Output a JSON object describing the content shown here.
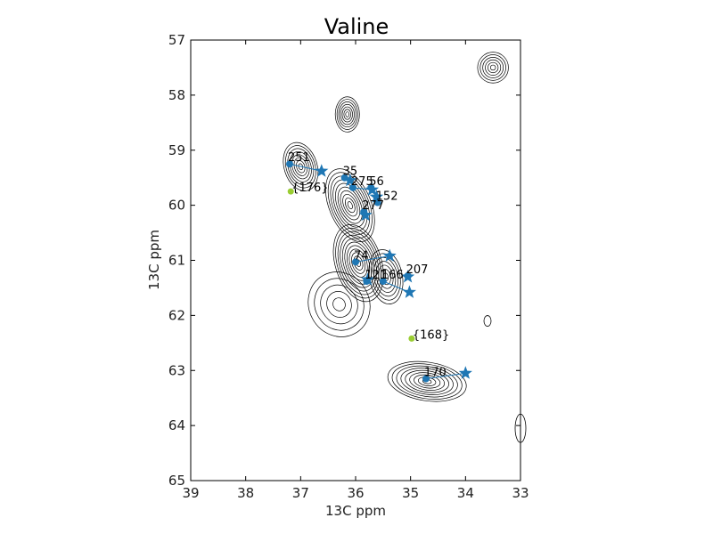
{
  "chart_data": {
    "type": "scatter",
    "title": "Valine",
    "xlabel": "13C ppm",
    "ylabel": "13C ppm",
    "xlim": [
      39,
      33
    ],
    "ylim": [
      65,
      57
    ],
    "x_reversed": true,
    "y_reversed": true,
    "grid": false,
    "xticks": [
      "39",
      "38",
      "37",
      "36",
      "35",
      "34",
      "33"
    ],
    "yticks": [
      "57",
      "58",
      "59",
      "60",
      "61",
      "62",
      "63",
      "64",
      "65"
    ],
    "colors": {
      "marker": "#1f77b4",
      "unassigned": "#9acd32",
      "contour": "#000000"
    },
    "peaks": [
      {
        "label": "251",
        "x": 37.2,
        "y": 59.25,
        "pred_x": 36.62,
        "pred_y": 59.38
      },
      {
        "label": "35",
        "x": 36.2,
        "y": 59.5,
        "pred_x": 36.1,
        "pred_y": 59.55
      },
      {
        "label": "275",
        "x": 36.05,
        "y": 59.68,
        "pred_x": 35.7,
        "pred_y": 59.72
      },
      {
        "label": "56",
        "x": 35.72,
        "y": 59.68,
        "pred_x": 35.62,
        "pred_y": 59.85
      },
      {
        "label": "152",
        "x": 35.6,
        "y": 59.95,
        "pred_x": 35.62,
        "pred_y": 59.85
      },
      {
        "label": "277",
        "x": 35.85,
        "y": 60.12,
        "pred_x": 35.82,
        "pred_y": 60.18
      },
      {
        "label": "74",
        "x": 36.0,
        "y": 61.03,
        "pred_x": 35.38,
        "pred_y": 60.92
      },
      {
        "label": "121",
        "x": 35.8,
        "y": 61.38,
        "pred_x": 35.78,
        "pred_y": 61.35
      },
      {
        "label": "166",
        "x": 35.5,
        "y": 61.38,
        "pred_x": 35.02,
        "pred_y": 61.58
      },
      {
        "label": "207",
        "x": 35.05,
        "y": 61.28,
        "pred_x": 35.05,
        "pred_y": 61.3
      },
      {
        "label": "170",
        "x": 34.72,
        "y": 63.15,
        "pred_x": 34.0,
        "pred_y": 63.05
      }
    ],
    "unassigned": [
      {
        "label": "{176}",
        "x": 37.18,
        "y": 59.75
      },
      {
        "label": "{168}",
        "x": 34.98,
        "y": 62.42
      }
    ]
  }
}
